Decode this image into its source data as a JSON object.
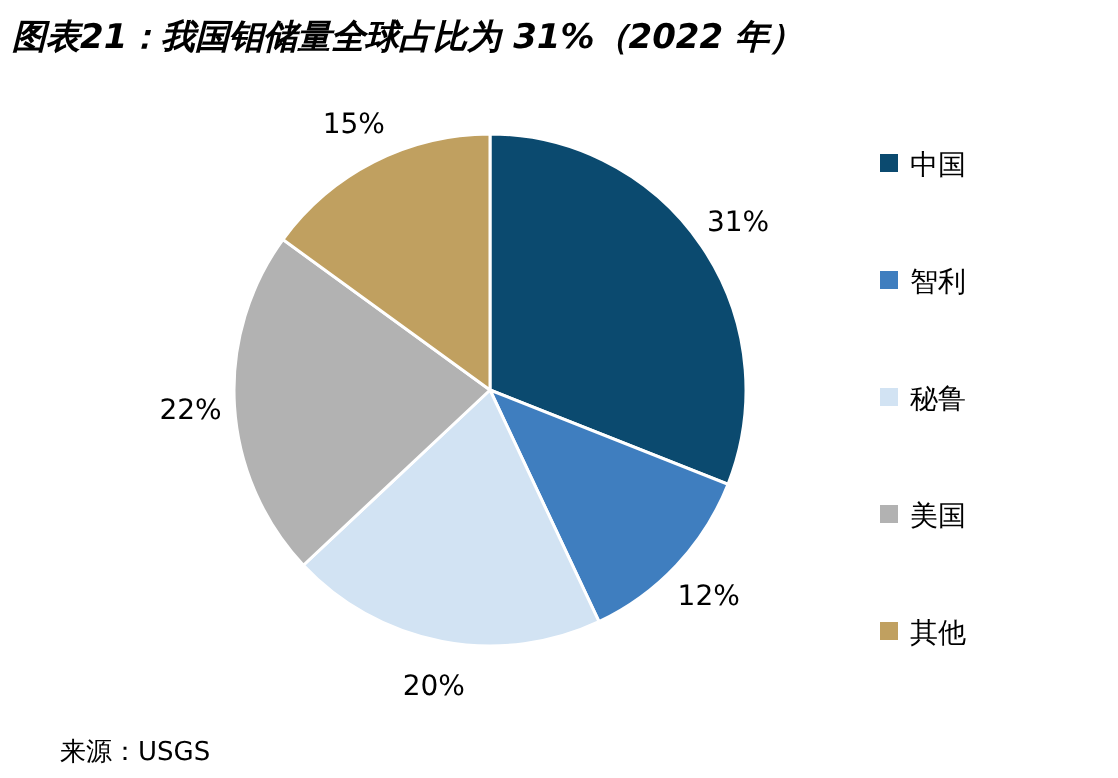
{
  "chart_data": {
    "type": "pie",
    "title": "图表21：我国钼储量全球占比为 31%（2022 年）",
    "categories": [
      "中国",
      "智利",
      "秘鲁",
      "美国",
      "其他"
    ],
    "values": [
      31,
      12,
      20,
      22,
      15
    ],
    "colors": [
      "#0b4a6f",
      "#3f7ebf",
      "#d2e3f3",
      "#b2b2b2",
      "#c0a060"
    ],
    "value_labels": [
      "31%",
      "12%",
      "20%",
      "22%",
      "15%"
    ],
    "legend": "right",
    "annotations": [
      "来源：USGS"
    ]
  }
}
